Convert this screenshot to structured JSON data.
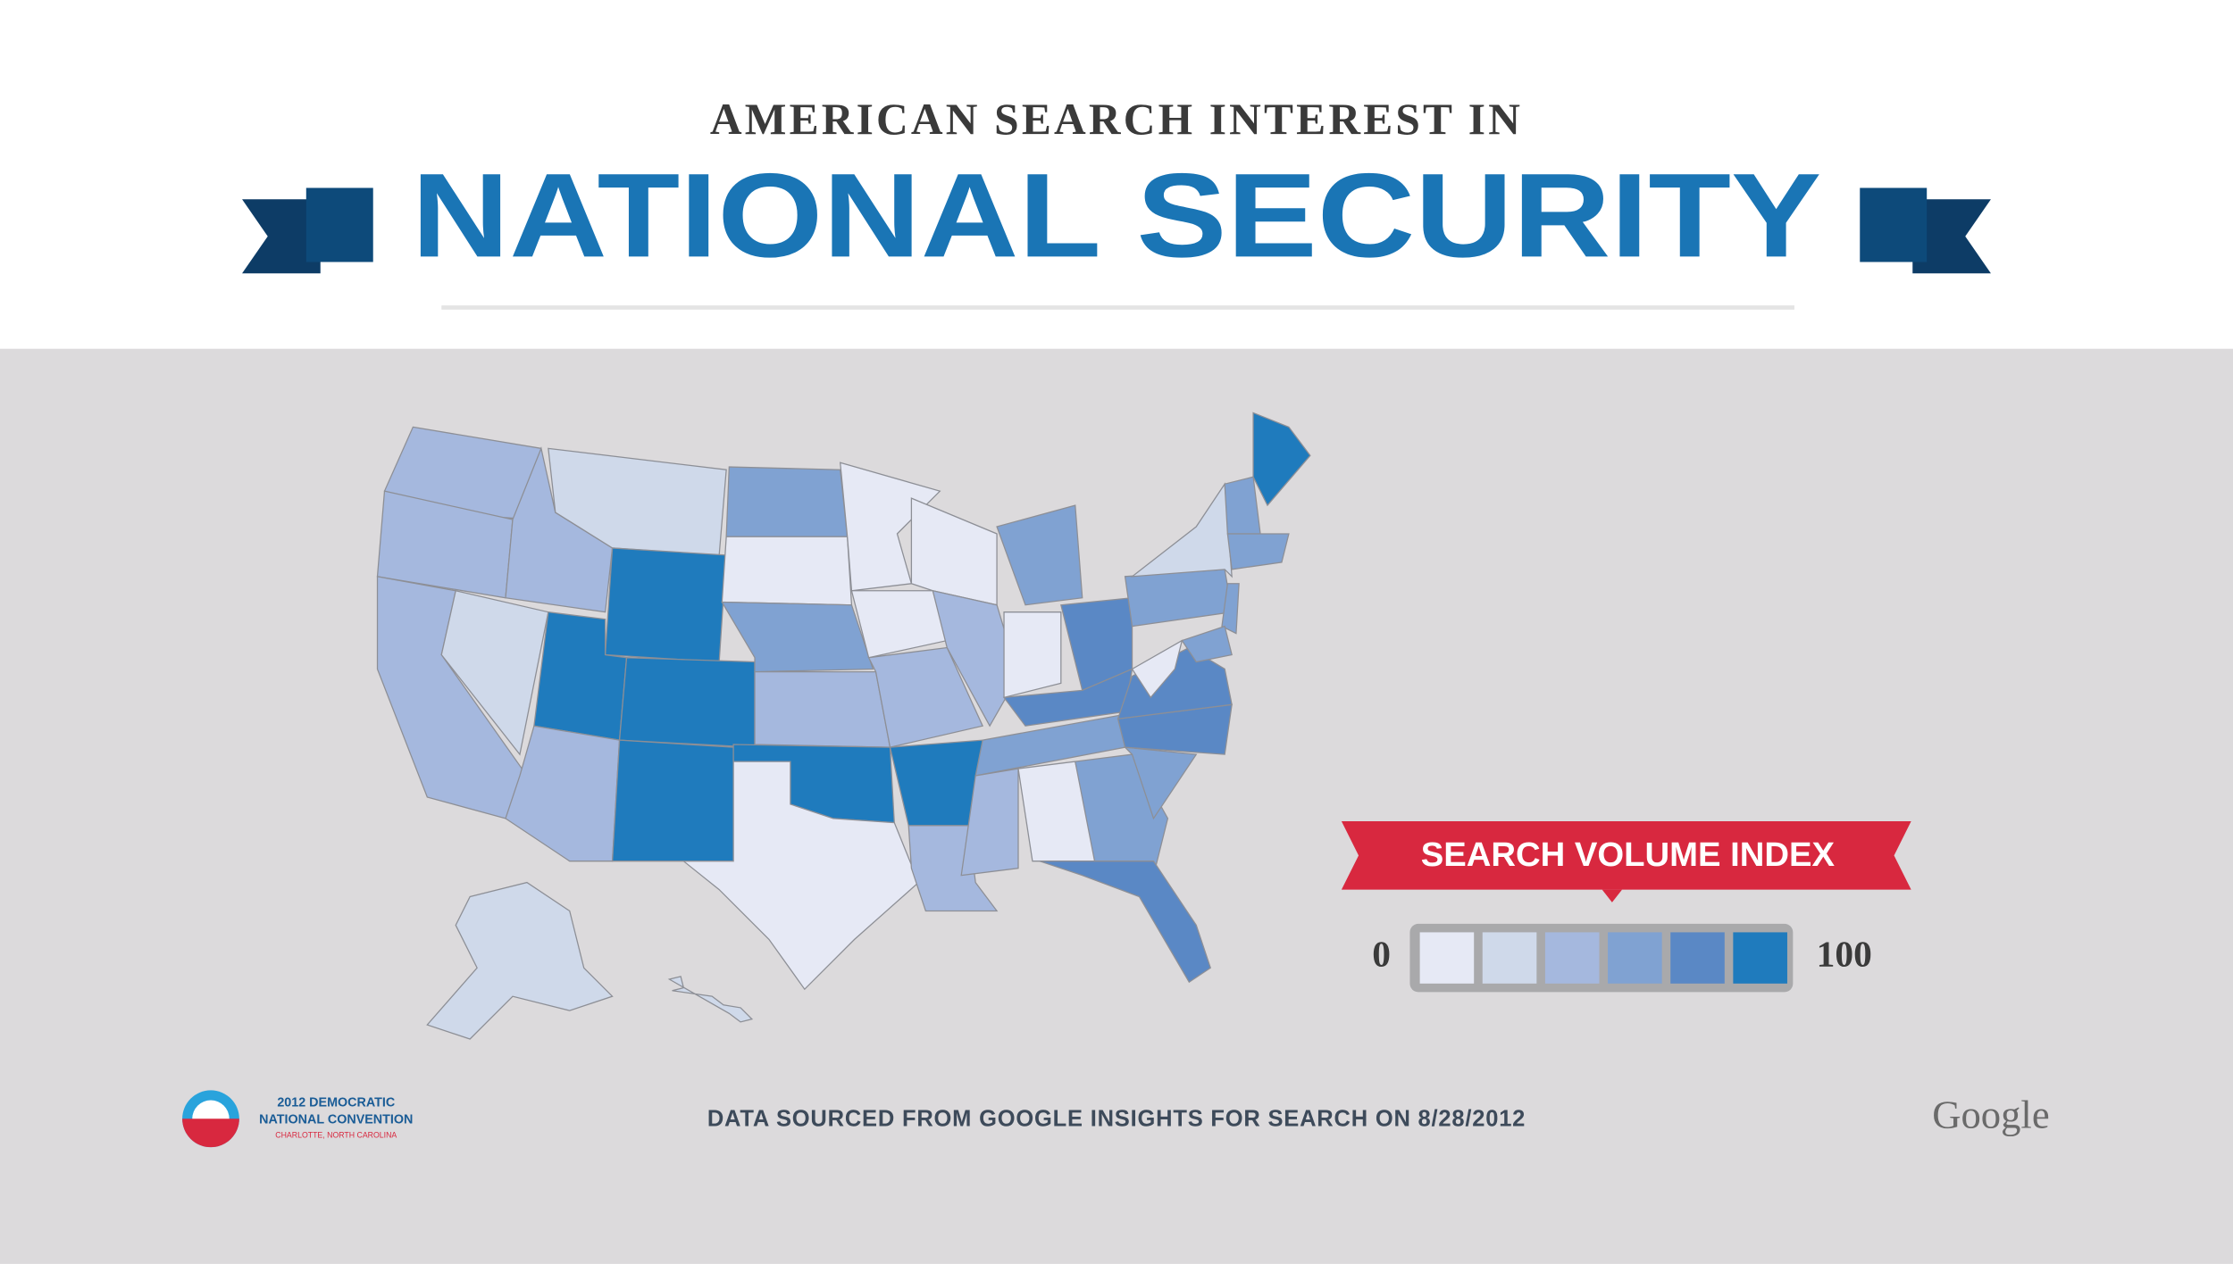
{
  "header": {
    "kicker": "AMERICAN SEARCH INTEREST IN",
    "title": "NATIONAL SECURITY"
  },
  "map": {
    "values": [
      40,
      40,
      40,
      20,
      40,
      20,
      100,
      100,
      40,
      100,
      100,
      60,
      0,
      60,
      40,
      100,
      0,
      0,
      0,
      40,
      100,
      40,
      0,
      40,
      60,
      0,
      80,
      80,
      60,
      40,
      0,
      60,
      80,
      60,
      80,
      80,
      0,
      60,
      20,
      60,
      100,
      60,
      60,
      60,
      20,
      20
    ],
    "legend": {
      "title": "SEARCH VOLUME INDEX",
      "min": 0,
      "max": 100,
      "colors": [
        "#e6e9f5",
        "#cfd9ea",
        "#a5b8de",
        "#80a2d2",
        "#5a88c5",
        "#1f7bbd"
      ]
    }
  },
  "footer": {
    "source": "DATA SOURCED FROM GOOGLE INSIGHTS FOR SEARCH ON 8/28/2012",
    "logo": {
      "line1": "2012 DEMOCRATIC",
      "line2": "NATIONAL CONVENTION",
      "line3": "CHARLOTTE, NORTH CAROLINA"
    },
    "brand": "Google"
  }
}
